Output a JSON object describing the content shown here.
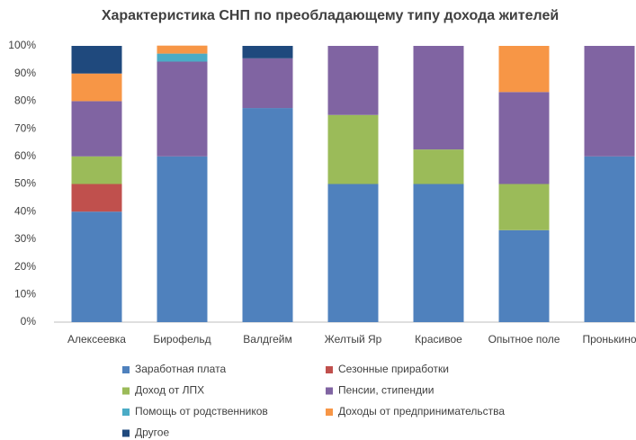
{
  "chart_data": {
    "type": "stacked_bar",
    "title": "Характеристика СНП по преобладающему типу дохода жителей",
    "categories": [
      "Алексеевка",
      "Бирофельд",
      "Валдгейм",
      "Желтый Яр",
      "Красивое",
      "Опытное поле",
      "Пронькино"
    ],
    "series": [
      {
        "name": "Заработная плата",
        "color": "#4f81bd",
        "values": [
          40,
          60,
          77.5,
          50,
          50,
          33.3,
          60
        ]
      },
      {
        "name": "Сезонные приработки",
        "color": "#c0504d",
        "values": [
          10,
          0,
          0,
          0,
          0,
          0,
          0
        ]
      },
      {
        "name": "Доход от ЛПХ",
        "color": "#9bbb59",
        "values": [
          10,
          0,
          0,
          25,
          12.5,
          16.7,
          0
        ]
      },
      {
        "name": "Пенсии, стипендии",
        "color": "#8064a2",
        "values": [
          20,
          34.3,
          18,
          25,
          37.5,
          33.3,
          40
        ]
      },
      {
        "name": "Помощь от родственников",
        "color": "#4bacc6",
        "values": [
          0,
          2.9,
          0,
          0,
          0,
          0,
          0
        ]
      },
      {
        "name": "Доходы от предпринимательства",
        "color": "#f79646",
        "values": [
          10,
          2.9,
          0,
          0,
          0,
          16.7,
          0
        ]
      },
      {
        "name": "Другое",
        "color": "#1f497d",
        "values": [
          10,
          0,
          4.5,
          0,
          0,
          0,
          0
        ]
      }
    ],
    "ylim": [
      0,
      100
    ],
    "yticks": [
      {
        "value": 0,
        "label": "0%"
      },
      {
        "value": 10,
        "label": "10%"
      },
      {
        "value": 20,
        "label": "20%"
      },
      {
        "value": 30,
        "label": "30%"
      },
      {
        "value": 40,
        "label": "40%"
      },
      {
        "value": 50,
        "label": "50%"
      },
      {
        "value": 60,
        "label": "60%"
      },
      {
        "value": 70,
        "label": "70%"
      },
      {
        "value": 80,
        "label": "80%"
      },
      {
        "value": 90,
        "label": "90%"
      },
      {
        "value": 100,
        "label": "100%"
      }
    ],
    "grid": false
  }
}
